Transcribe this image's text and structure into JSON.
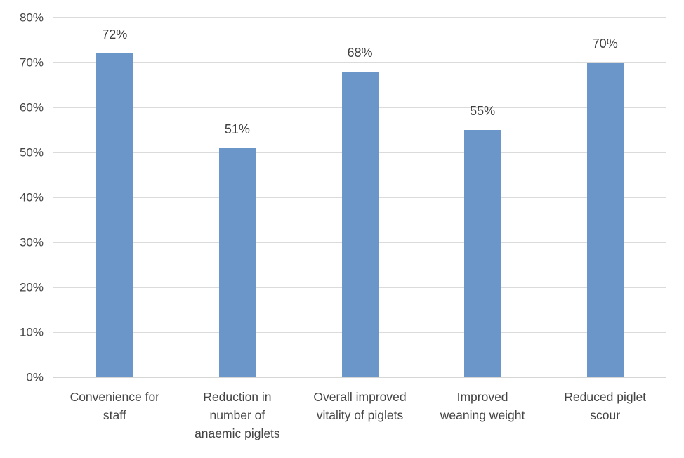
{
  "chart_data": {
    "type": "bar",
    "title": "",
    "xlabel": "",
    "ylabel": "",
    "categories": [
      "Convenience for staff",
      "Reduction in number of anaemic piglets",
      "Overall improved vitality of piglets",
      "Improved weaning weight",
      "Reduced piglet scour"
    ],
    "category_display_lines": [
      [
        "Convenience for",
        "staff"
      ],
      [
        "Reduction in",
        "number of",
        "anaemic piglets"
      ],
      [
        "Overall improved",
        "vitality of piglets"
      ],
      [
        "Improved",
        "weaning weight"
      ],
      [
        "Reduced piglet",
        "scour"
      ]
    ],
    "values": [
      72,
      51,
      68,
      55,
      70
    ],
    "data_labels": [
      "72%",
      "51%",
      "68%",
      "55%",
      "70%"
    ],
    "ylim": [
      0,
      80
    ],
    "ytick_step": 10,
    "ytick_labels": [
      "0%",
      "10%",
      "20%",
      "30%",
      "40%",
      "50%",
      "60%",
      "70%",
      "80%"
    ],
    "grid": "horizontal",
    "legend": "none",
    "colors": {
      "bar": "#6a96ca",
      "gridline": "#dbdbdb",
      "axis_line": "#d6d6d6",
      "text": "#404040"
    }
  }
}
